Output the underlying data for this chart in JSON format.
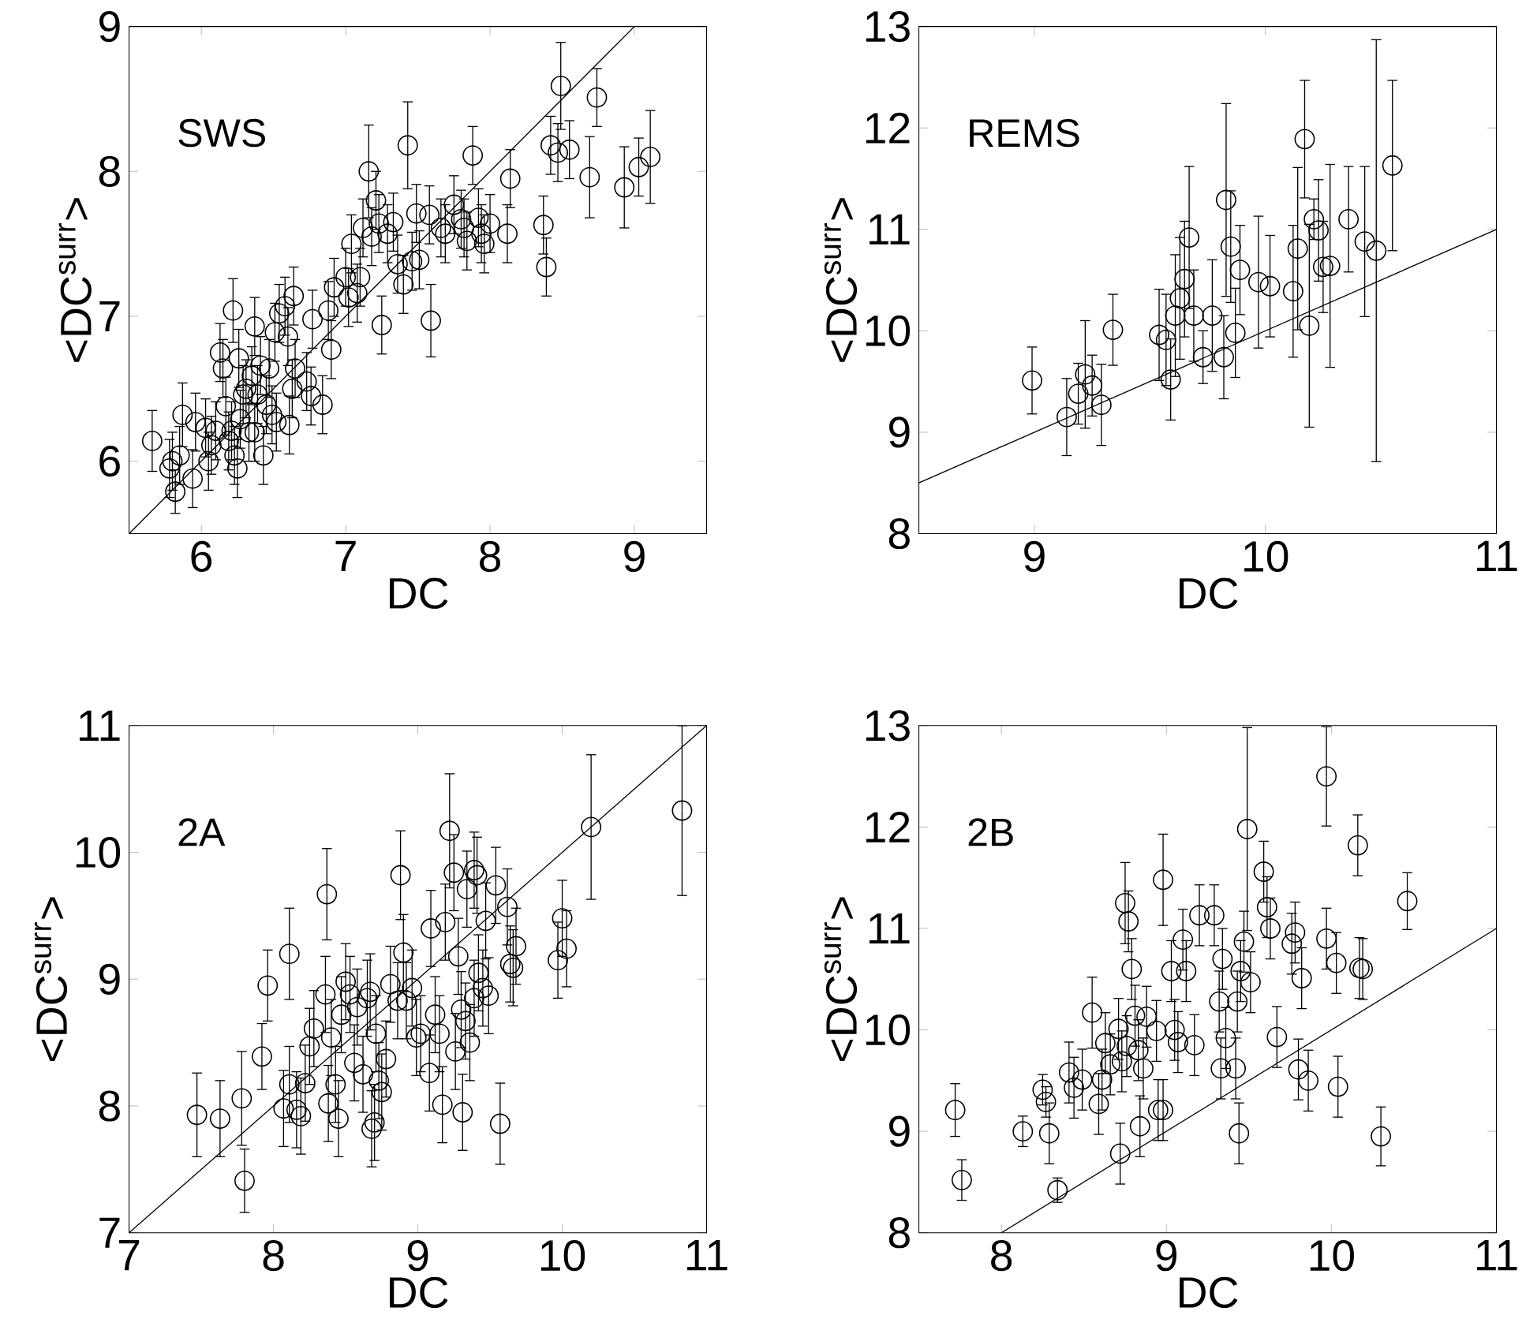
{
  "chart_data": [
    {
      "type": "scatter",
      "annotations": [
        "SWS"
      ],
      "xlabel": "DC",
      "ylabel": "<DC$^{surr}$>",
      "xlim": [
        5.5,
        9.5
      ],
      "ylim": [
        5.5,
        9
      ],
      "xticks": [
        6,
        7,
        8,
        9
      ],
      "yticks": [
        6,
        7,
        8,
        9
      ],
      "marker": "circle",
      "series": [
        {
          "type": "scatter",
          "color": "#000000",
          "x": [
            5.66,
            5.78,
            5.8,
            5.82,
            5.87,
            5.85,
            5.94,
            5.96,
            6.03,
            6.05,
            6.07,
            6.1,
            6.13,
            6.15,
            6.17,
            6.19,
            6.21,
            6.22,
            6.23,
            6.25,
            6.27,
            6.26,
            6.29,
            6.31,
            6.33,
            6.35,
            6.37,
            6.37,
            6.39,
            6.41,
            6.43,
            6.45,
            6.47,
            6.49,
            6.51,
            6.52,
            6.54,
            6.58,
            6.6,
            6.61,
            6.63,
            6.64,
            6.65,
            6.73,
            6.76,
            6.77,
            6.84,
            6.88,
            6.9,
            6.92,
            7.0,
            7.04,
            7.02,
            7.08,
            7.1,
            7.12,
            7.16,
            7.18,
            7.21,
            7.23,
            7.25,
            7.29,
            7.33,
            7.36,
            7.4,
            7.43,
            7.46,
            7.49,
            7.51,
            7.58,
            7.59,
            7.66,
            7.69,
            7.75,
            7.8,
            7.82,
            7.84,
            7.88,
            7.92,
            7.94,
            7.96,
            8.0,
            8.14,
            8.12,
            8.37,
            8.39,
            8.42,
            8.47,
            8.49,
            8.55,
            8.69,
            8.74,
            8.93,
            9.03,
            9.11
          ],
          "values": [
            6.14,
            5.95,
            6.0,
            5.79,
            6.32,
            6.04,
            5.88,
            6.27,
            6.23,
            6.0,
            6.11,
            6.21,
            6.75,
            6.64,
            6.38,
            6.14,
            6.21,
            7.04,
            6.04,
            5.95,
            6.29,
            6.71,
            6.46,
            6.5,
            6.2,
            6.59,
            6.93,
            6.2,
            6.46,
            6.66,
            6.04,
            6.39,
            6.64,
            6.32,
            6.89,
            6.27,
            7.02,
            7.07,
            6.86,
            6.25,
            6.5,
            7.14,
            6.64,
            6.55,
            6.45,
            6.98,
            6.39,
            7.04,
            6.77,
            7.2,
            7.27,
            7.5,
            7.13,
            7.16,
            7.27,
            7.61,
            8.0,
            7.55,
            7.8,
            7.64,
            6.94,
            7.57,
            7.65,
            7.36,
            7.22,
            8.18,
            7.38,
            7.71,
            7.39,
            7.7,
            6.97,
            7.61,
            7.57,
            7.77,
            7.67,
            7.61,
            7.52,
            8.11,
            7.68,
            7.57,
            7.5,
            7.64,
            7.95,
            7.57,
            7.63,
            7.34,
            8.18,
            8.13,
            8.59,
            8.15,
            7.96,
            8.51,
            7.89,
            8.03,
            8.1
          ],
          "errors": [
            0.21,
            0.2,
            0.2,
            0.15,
            0.22,
            0.2,
            0.2,
            0.2,
            0.2,
            0.2,
            0.2,
            0.2,
            0.2,
            0.2,
            0.2,
            0.2,
            0.2,
            0.22,
            0.2,
            0.2,
            0.2,
            0.2,
            0.2,
            0.2,
            0.2,
            0.2,
            0.2,
            0.2,
            0.2,
            0.2,
            0.2,
            0.2,
            0.2,
            0.2,
            0.2,
            0.2,
            0.2,
            0.2,
            0.2,
            0.2,
            0.2,
            0.2,
            0.2,
            0.2,
            0.2,
            0.2,
            0.2,
            0.2,
            0.2,
            0.2,
            0.2,
            0.2,
            0.2,
            0.2,
            0.2,
            0.2,
            0.32,
            0.2,
            0.2,
            0.2,
            0.2,
            0.2,
            0.2,
            0.2,
            0.2,
            0.3,
            0.2,
            0.2,
            0.2,
            0.2,
            0.25,
            0.2,
            0.2,
            0.2,
            0.2,
            0.2,
            0.2,
            0.2,
            0.2,
            0.2,
            0.2,
            0.2,
            0.2,
            0.2,
            0.2,
            0.2,
            0.2,
            0.2,
            0.3,
            0.2,
            0.28,
            0.2,
            0.28,
            0.2,
            0.32
          ]
        },
        {
          "type": "line",
          "color": "#000000",
          "marker": "none",
          "x": [
            5.5,
            9
          ],
          "values": [
            5.5,
            9
          ]
        }
      ]
    },
    {
      "type": "scatter",
      "annotations": [
        "REMS"
      ],
      "xlabel": "DC",
      "ylabel": "<DC$^{surr}$>",
      "xlim": [
        8.5,
        11
      ],
      "ylim": [
        8,
        13
      ],
      "xticks": [
        9,
        10,
        11
      ],
      "yticks": [
        8,
        9,
        10,
        11,
        12,
        13
      ],
      "marker": "circle",
      "series": [
        {
          "type": "scatter",
          "color": "#000000",
          "x": [
            8.99,
            9.14,
            9.19,
            9.22,
            9.25,
            9.29,
            9.34,
            9.54,
            9.57,
            9.59,
            9.61,
            9.63,
            9.65,
            9.67,
            9.69,
            9.73,
            9.77,
            9.82,
            9.83,
            9.85,
            9.87,
            9.89,
            9.97,
            10.02,
            10.12,
            10.17,
            10.14,
            10.19,
            10.21,
            10.23,
            10.25,
            10.28,
            10.36,
            10.43,
            10.48,
            10.55
          ],
          "values": [
            9.51,
            9.15,
            9.38,
            9.57,
            9.46,
            9.27,
            10.01,
            9.96,
            9.91,
            9.52,
            10.15,
            10.32,
            10.51,
            10.92,
            10.15,
            9.74,
            10.15,
            9.74,
            11.29,
            10.83,
            9.98,
            10.6,
            10.48,
            10.44,
            10.39,
            11.89,
            10.81,
            10.05,
            11.1,
            10.99,
            10.63,
            10.64,
            11.1,
            10.88,
            10.79,
            11.63
          ],
          "errors": [
            0.33,
            0.38,
            0.3,
            0.53,
            0.3,
            0.4,
            0.35,
            0.45,
            0.45,
            0.4,
            0.6,
            0.6,
            0.57,
            0.7,
            0.45,
            0.26,
            0.55,
            0.41,
            0.95,
            0.55,
            0.44,
            0.44,
            0.65,
            0.5,
            0.65,
            0.58,
            0.8,
            1.0,
            0.2,
            0.5,
            0.45,
            1.0,
            0.52,
            0.74,
            2.08,
            0.84
          ]
        },
        {
          "type": "line",
          "color": "#000000",
          "marker": "none",
          "x": [
            8.5,
            11
          ],
          "values": [
            8.5,
            11
          ]
        }
      ]
    },
    {
      "type": "scatter",
      "annotations": [
        "2A"
      ],
      "xlabel": "DC",
      "ylabel": "<DC$^{surr}$>",
      "xlim": [
        7,
        11
      ],
      "ylim": [
        7,
        11
      ],
      "xticks": [
        7,
        8,
        9,
        10,
        11
      ],
      "yticks": [
        7,
        8,
        9,
        10,
        11
      ],
      "marker": "circle",
      "series": [
        {
          "type": "scatter",
          "color": "#000000",
          "x": [
            7.47,
            7.63,
            7.78,
            7.8,
            7.92,
            7.96,
            8.11,
            8.07,
            8.11,
            8.16,
            8.19,
            8.22,
            8.25,
            8.28,
            8.37,
            8.36,
            8.4,
            8.38,
            8.43,
            8.45,
            8.47,
            8.5,
            8.53,
            8.56,
            8.58,
            8.62,
            8.65,
            8.67,
            8.68,
            8.7,
            8.71,
            8.73,
            8.75,
            8.78,
            8.81,
            8.86,
            8.88,
            8.9,
            8.92,
            8.96,
            8.99,
            9.02,
            9.09,
            9.08,
            9.12,
            9.17,
            9.15,
            9.19,
            9.22,
            9.26,
            9.25,
            9.28,
            9.3,
            9.31,
            9.33,
            9.34,
            9.36,
            9.39,
            9.39,
            9.41,
            9.42,
            9.45,
            9.47,
            9.49,
            9.54,
            9.57,
            9.62,
            9.64,
            9.66,
            9.68,
            9.97,
            10.0,
            10.03,
            10.2,
            10.83
          ],
          "values": [
            7.93,
            7.9,
            8.06,
            7.41,
            8.39,
            8.95,
            9.2,
            7.98,
            8.17,
            7.97,
            7.92,
            8.18,
            8.47,
            8.61,
            9.67,
            8.88,
            8.54,
            8.02,
            8.17,
            7.9,
            8.72,
            8.98,
            8.88,
            8.34,
            8.78,
            8.25,
            8.85,
            8.9,
            7.82,
            7.87,
            8.57,
            8.2,
            8.11,
            8.37,
            8.96,
            8.83,
            9.82,
            9.21,
            8.83,
            8.93,
            8.54,
            8.57,
            9.4,
            8.26,
            8.72,
            8.01,
            8.57,
            9.45,
            10.17,
            8.43,
            9.84,
            9.18,
            8.76,
            7.95,
            8.67,
            9.71,
            8.5,
            8.85,
            9.86,
            9.82,
            9.05,
            8.93,
            9.46,
            8.87,
            9.74,
            7.86,
            9.57,
            9.12,
            9.09,
            9.26,
            9.15,
            9.48,
            9.24,
            10.2,
            10.33
          ],
          "errors": [
            0.33,
            0.3,
            0.37,
            0.25,
            0.26,
            0.28,
            0.36,
            0.3,
            0.3,
            0.3,
            0.3,
            0.3,
            0.3,
            0.3,
            0.36,
            0.3,
            0.3,
            0.3,
            0.3,
            0.3,
            0.3,
            0.3,
            0.3,
            0.3,
            0.3,
            0.3,
            0.3,
            0.3,
            0.3,
            0.3,
            0.3,
            0.3,
            0.3,
            0.3,
            0.3,
            0.3,
            0.35,
            0.3,
            0.3,
            0.3,
            0.3,
            0.3,
            0.3,
            0.3,
            0.3,
            0.3,
            0.3,
            0.3,
            0.45,
            0.3,
            0.3,
            0.3,
            0.3,
            0.3,
            0.3,
            0.3,
            0.3,
            0.3,
            0.3,
            0.3,
            0.3,
            0.3,
            0.3,
            0.3,
            0.3,
            0.32,
            0.3,
            0.3,
            0.3,
            0.3,
            0.3,
            0.3,
            0.3,
            0.57,
            0.67
          ]
        },
        {
          "type": "line",
          "color": "#000000",
          "marker": "none",
          "x": [
            7,
            11
          ],
          "values": [
            7,
            11
          ]
        }
      ]
    },
    {
      "type": "scatter",
      "annotations": [
        "2B"
      ],
      "xlabel": "DC",
      "ylabel": "<DC$^{surr}$>",
      "xlim": [
        7.5,
        11
      ],
      "ylim": [
        8,
        13
      ],
      "xticks": [
        8,
        9,
        10,
        11
      ],
      "yticks": [
        8,
        9,
        10,
        11,
        12,
        13
      ],
      "marker": "circle",
      "series": [
        {
          "type": "scatter",
          "color": "#000000",
          "x": [
            7.72,
            7.76,
            8.13,
            8.25,
            8.27,
            8.29,
            8.34,
            8.41,
            8.44,
            8.49,
            8.55,
            8.59,
            8.61,
            8.63,
            8.66,
            8.71,
            8.72,
            8.73,
            8.76,
            8.75,
            8.77,
            8.79,
            8.81,
            8.83,
            8.84,
            8.86,
            8.88,
            8.94,
            8.95,
            8.98,
            8.98,
            9.03,
            9.05,
            9.07,
            9.1,
            9.12,
            9.17,
            9.2,
            9.29,
            9.32,
            9.33,
            9.34,
            9.36,
            9.42,
            9.43,
            9.44,
            9.47,
            9.45,
            9.49,
            9.51,
            9.59,
            9.61,
            9.63,
            9.67,
            9.76,
            9.78,
            9.8,
            9.82,
            9.86,
            9.97,
            9.97,
            10.03,
            10.04,
            10.16,
            10.17,
            10.19,
            10.3,
            10.46
          ],
          "values": [
            9.21,
            8.52,
            9.0,
            9.41,
            9.29,
            8.98,
            8.42,
            9.58,
            9.43,
            9.51,
            10.17,
            9.27,
            9.51,
            9.87,
            9.66,
            10.01,
            8.78,
            9.69,
            9.84,
            11.25,
            11.07,
            10.6,
            10.14,
            9.8,
            9.05,
            9.62,
            10.13,
            9.99,
            9.21,
            9.21,
            11.48,
            10.58,
            10.0,
            9.88,
            10.89,
            10.58,
            9.85,
            11.13,
            11.13,
            10.28,
            9.62,
            10.7,
            9.92,
            9.62,
            10.28,
            8.98,
            10.87,
            10.58,
            11.98,
            10.47,
            11.56,
            11.21,
            11.0,
            9.93,
            10.85,
            10.96,
            9.61,
            10.51,
            9.5,
            12.5,
            10.9,
            10.66,
            9.44,
            11.82,
            10.61,
            10.6,
            8.95,
            11.27
          ],
          "errors": [
            0.26,
            0.2,
            0.15,
            0.15,
            0.15,
            0.3,
            0.12,
            0.3,
            0.3,
            0.3,
            0.35,
            0.3,
            0.3,
            0.3,
            0.3,
            0.3,
            0.3,
            0.3,
            0.3,
            0.4,
            0.3,
            0.3,
            0.3,
            0.3,
            0.3,
            0.3,
            0.3,
            0.3,
            0.3,
            0.3,
            0.45,
            0.3,
            0.3,
            0.3,
            0.3,
            0.3,
            0.3,
            0.3,
            0.3,
            0.3,
            0.3,
            0.3,
            0.3,
            0.3,
            0.3,
            0.3,
            0.3,
            0.3,
            1.0,
            0.3,
            0.3,
            0.3,
            0.3,
            0.3,
            0.3,
            0.3,
            0.3,
            0.3,
            0.3,
            0.49,
            0.3,
            0.3,
            0.3,
            0.3,
            0.3,
            0.3,
            0.29,
            0.28
          ]
        },
        {
          "type": "line",
          "color": "#000000",
          "marker": "none",
          "x": [
            8,
            11
          ],
          "values": [
            8,
            11
          ]
        }
      ]
    }
  ]
}
